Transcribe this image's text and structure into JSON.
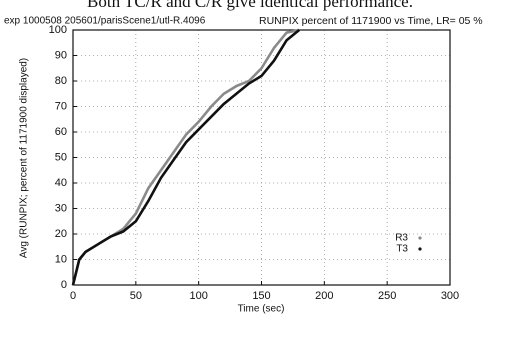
{
  "caption": "Both TC/R and C/R give identical performance.",
  "chart_data": {
    "type": "line",
    "title": "exp 1000508 205601/parisScene1/utl-R.4096",
    "subtitle": "RUNPIX percent of 1171900 vs  Time, LR= 05 %",
    "x_label": "Time (sec)",
    "y_label": "Avg (RUNPIX; percent of 1171900 displayed)",
    "x": [
      0,
      5,
      10,
      20,
      30,
      40,
      50,
      60,
      70,
      80,
      90,
      100,
      110,
      120,
      130,
      140,
      150,
      160,
      170,
      180
    ],
    "series": [
      {
        "name": "R3",
        "color": "#8a8a8a",
        "values": [
          0,
          10,
          13,
          16,
          19,
          22,
          28,
          38,
          45,
          52,
          59,
          64,
          70,
          75,
          78,
          80,
          85,
          93,
          99,
          100
        ]
      },
      {
        "name": "T3",
        "color": "#111111",
        "values": [
          0,
          10,
          13,
          16,
          19,
          21,
          25,
          33,
          42,
          49,
          56,
          61,
          66,
          71,
          75,
          79,
          82,
          88,
          96,
          100
        ]
      }
    ],
    "xlim": [
      0,
      300
    ],
    "xticks": [
      0,
      50,
      100,
      150,
      200,
      250,
      300
    ],
    "ylim": [
      0,
      100
    ],
    "yticks": [
      0,
      10,
      20,
      30,
      40,
      50,
      60,
      70,
      80,
      90,
      100
    ],
    "grid": true,
    "legend": "lower right"
  }
}
